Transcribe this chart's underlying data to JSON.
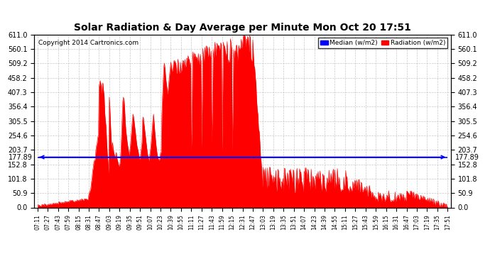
{
  "title": "Solar Radiation & Day Average per Minute Mon Oct 20 17:51",
  "copyright": "Copyright 2014 Cartronics.com",
  "median_value": 177.89,
  "median_label": "177.89",
  "ymax": 611.0,
  "ymin": 0.0,
  "yticks": [
    0.0,
    50.9,
    101.8,
    152.8,
    203.7,
    254.6,
    305.5,
    356.4,
    407.3,
    458.2,
    509.2,
    560.1,
    611.0
  ],
  "ytick_labels": [
    "0.0",
    "50.9",
    "101.8",
    "152.8",
    "203.7",
    "254.6",
    "305.5",
    "356.4",
    "407.3",
    "458.2",
    "509.2",
    "560.1",
    "611.0"
  ],
  "fill_color": "#FF0000",
  "line_color": "#FF0000",
  "median_line_color": "#0000FF",
  "background_color": "#FFFFFF",
  "grid_color": "#BBBBBB",
  "xtick_labels": [
    "07:11",
    "07:27",
    "07:43",
    "07:59",
    "08:15",
    "08:31",
    "08:47",
    "09:03",
    "09:19",
    "09:35",
    "09:51",
    "10:07",
    "10:23",
    "10:39",
    "10:55",
    "11:11",
    "11:27",
    "11:43",
    "11:59",
    "12:15",
    "12:31",
    "12:47",
    "13:03",
    "13:19",
    "13:35",
    "13:51",
    "14:07",
    "14:23",
    "14:39",
    "14:55",
    "15:11",
    "15:27",
    "15:43",
    "15:59",
    "16:15",
    "16:31",
    "16:47",
    "17:03",
    "17:19",
    "17:35",
    "17:51"
  ],
  "legend_median_label": "Median (w/m2)",
  "legend_radiation_label": "Radiation (w/m2)"
}
